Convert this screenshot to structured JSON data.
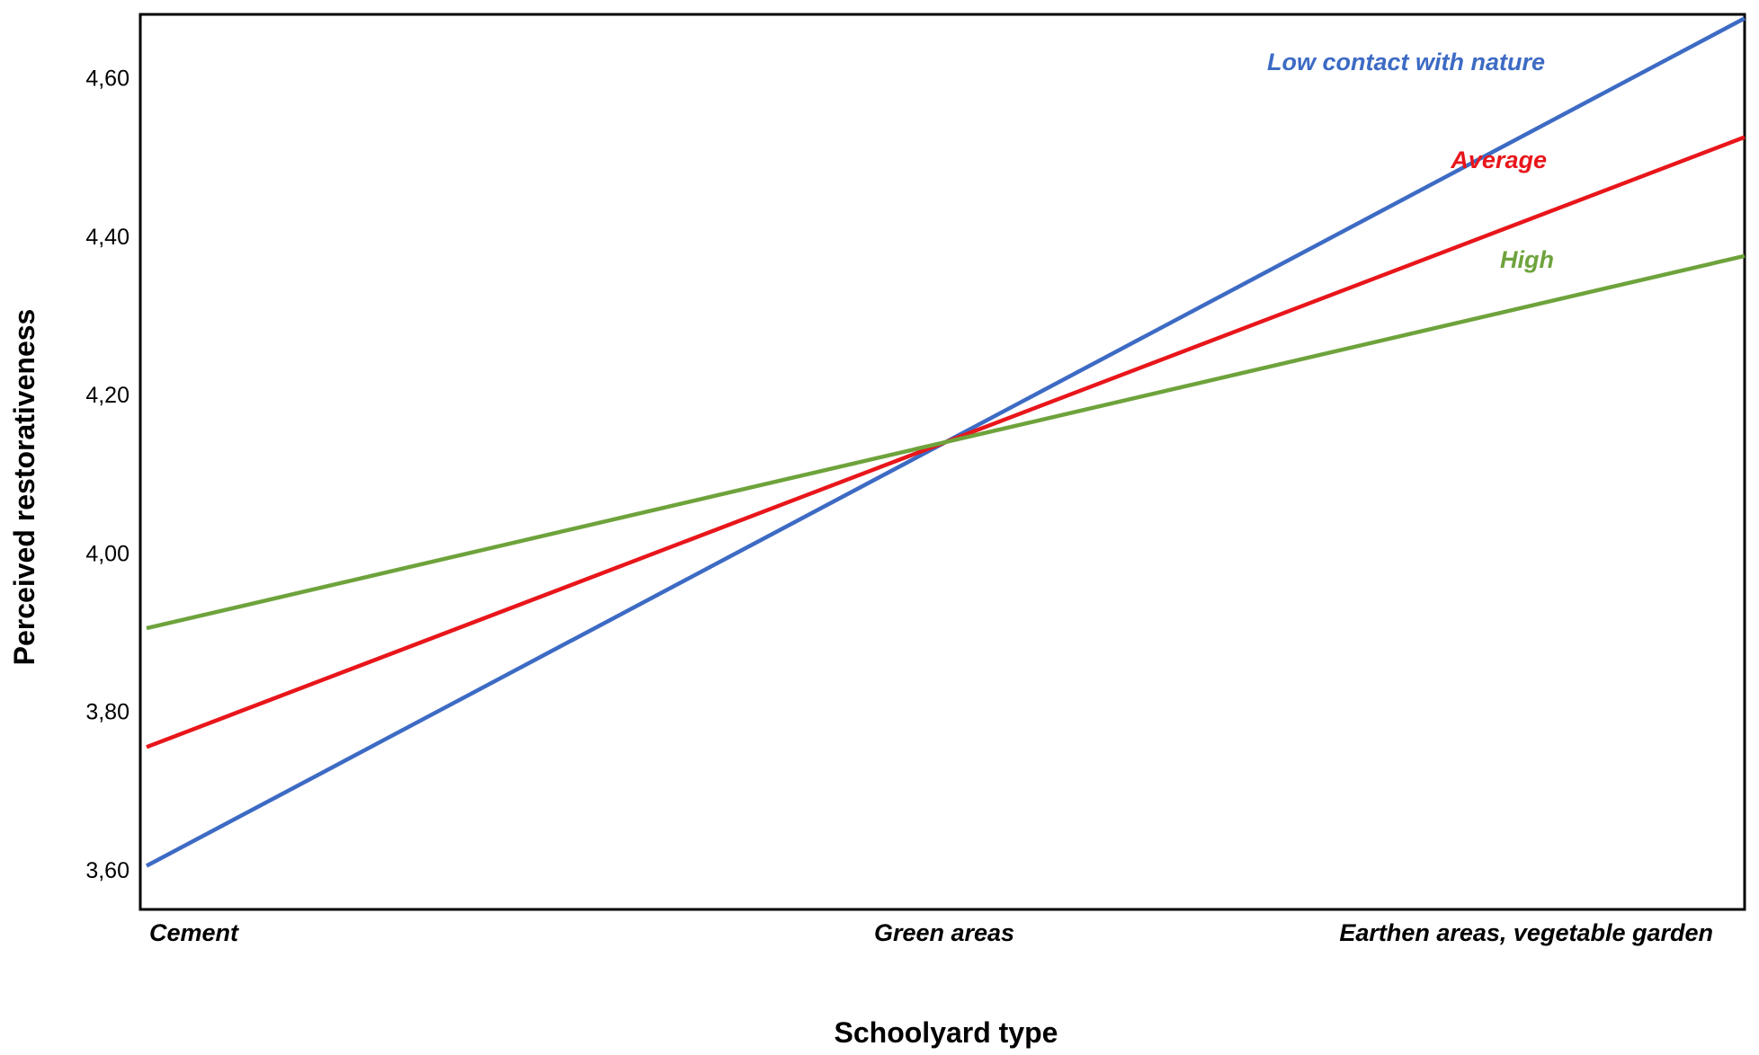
{
  "chart_data": {
    "type": "line",
    "title": "",
    "xlabel": "Schoolyard type",
    "ylabel": "Perceived restorativeness",
    "categories": [
      "Cement",
      "Green areas",
      "Earthen areas, vegetable garden"
    ],
    "yticks": [
      "3,60",
      "3,80",
      "4,00",
      "4,20",
      "4,40",
      "4,60"
    ],
    "ytick_values": [
      3.6,
      3.8,
      4.0,
      4.2,
      4.4,
      4.6
    ],
    "ylim": [
      3.55,
      4.68
    ],
    "grid": false,
    "series": [
      {
        "name": "Low contact with nature",
        "color": "#3d6bc4",
        "values": [
          3.605,
          4.14,
          4.675
        ]
      },
      {
        "name": "Average",
        "color": "#e8161b",
        "values": [
          3.755,
          4.14,
          4.525
        ]
      },
      {
        "name": "High",
        "color": "#6ea33c",
        "values": [
          3.905,
          4.14,
          4.375
        ]
      }
    ]
  }
}
